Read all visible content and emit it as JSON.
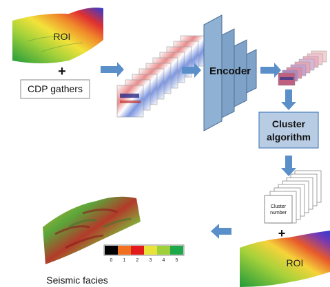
{
  "labels": {
    "roi_top": "ROI",
    "plus_top": "+",
    "cdp_gathers": "CDP gathers",
    "encoder": "Encoder",
    "cluster_algorithm_line1": "Cluster",
    "cluster_algorithm_line2": "algorithm",
    "cluster_number_line1": "Cluster",
    "cluster_number_line2": "number",
    "plus_bottom": "+",
    "roi_bottom": "ROI",
    "seismic_facies": "Seismic facies"
  },
  "legend": {
    "ticks": [
      "0",
      "1",
      "2",
      "3",
      "4",
      "5"
    ],
    "colors": [
      "#000000",
      "#f07020",
      "#e31a1c",
      "#e8e33a",
      "#9fcf3a",
      "#1fa84a"
    ]
  },
  "colors": {
    "arrow": "#5b8fc9",
    "encoder_fill": "#7fa3c8",
    "encoder_stroke": "#4b6f96",
    "cluster_fill": "#b8cce4",
    "cluster_stroke": "#4f81bd"
  }
}
